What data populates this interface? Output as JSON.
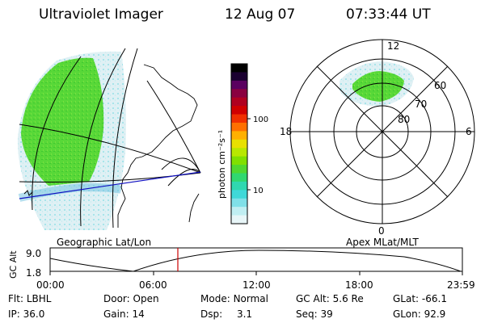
{
  "header": {
    "instrument": "Ultraviolet Imager",
    "date": "12 Aug 07",
    "time": "07:33:44 UT"
  },
  "geo_panel": {
    "label": "Geographic Lat/Lon"
  },
  "polar_panel": {
    "label": "Apex MLat/MLT",
    "mlt_labels": [
      "12",
      "18",
      "6",
      "0"
    ],
    "lat_labels": [
      "60",
      "70",
      "80"
    ]
  },
  "colorbar": {
    "unit_label": "photon cm⁻²s⁻¹",
    "ticks": [
      "100",
      "10"
    ],
    "colors": [
      "#000000",
      "#1a0030",
      "#5a0060",
      "#8a0040",
      "#b00020",
      "#d00000",
      "#f03000",
      "#ff7000",
      "#ffb000",
      "#e8e000",
      "#b8e800",
      "#80e000",
      "#50d830",
      "#30d870",
      "#30d8b0",
      "#40d8d8",
      "#80e0e8",
      "#c0eef2",
      "#e8f6f8"
    ]
  },
  "altitude_plot": {
    "ylabel": "GC Alt",
    "yticks": [
      "9.0",
      "1.8"
    ],
    "xticks": [
      "00:00",
      "06:00",
      "12:00",
      "18:00",
      "23:59"
    ]
  },
  "status": {
    "flt_label": "Flt:",
    "flt_value": "LBHL",
    "ip_label": "IP:",
    "ip_value": "36.0",
    "door_label": "Door:",
    "door_value": "Open",
    "gain_label": "Gain:",
    "gain_value": "14",
    "mode_label": "Mode:",
    "mode_value": "Normal",
    "dsp_label": "Dsp:",
    "dsp_value": "3.1",
    "gcalt_label": "GC Alt:",
    "gcalt_value": "5.6 Re",
    "seq_label": "Seq:",
    "seq_value": "39",
    "glat_label": "GLat:",
    "glat_value": "-66.1",
    "glon_label": "GLon:",
    "glon_value": "92.9"
  }
}
